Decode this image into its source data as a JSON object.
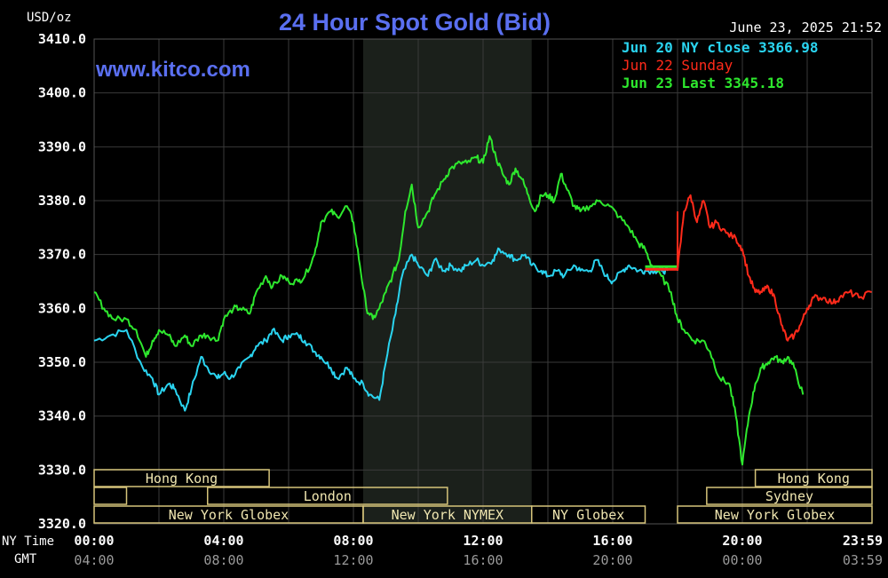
{
  "header": {
    "unit_label": "USD/oz",
    "title": "24 Hour Spot Gold (Bid)",
    "datetime": "June 23, 2025 21:52",
    "watermark": "www.kitco.com"
  },
  "colors": {
    "background": "#000000",
    "plot_background": "#000000",
    "grid": "#3a3a3a",
    "ny_session_shade": "#1b201b",
    "axis_text": "#ffffff",
    "axis_text_dim": "#9a9a9a",
    "title": "#5a6ff0",
    "jun20": "#2ad4f0",
    "jun22": "#ff2a1a",
    "jun23": "#2ee82e",
    "session_border": "#d6c47a",
    "session_text": "#f0e6b0"
  },
  "axis_labels": {
    "nytime": "NY Time",
    "gmt": "GMT"
  },
  "chart_data": {
    "type": "line",
    "ylim": [
      3320,
      3410
    ],
    "y_ticks": [
      "3410.0",
      "3400.0",
      "3390.0",
      "3380.0",
      "3370.0",
      "3360.0",
      "3350.0",
      "3340.0",
      "3330.0",
      "3320.0"
    ],
    "xlim": [
      0,
      24
    ],
    "x_ticks_ny": [
      "00:00",
      "04:00",
      "08:00",
      "12:00",
      "16:00",
      "20:00",
      "23:59"
    ],
    "x_ticks_gmt": [
      "04:00",
      "08:00",
      "12:00",
      "16:00",
      "20:00",
      "00:00",
      "03:59"
    ],
    "grid": true,
    "legend_position": "top-right",
    "legend": [
      {
        "label": "Jun 20 NY close 3366.98",
        "color": "#2ad4f0"
      },
      {
        "label": "Jun 22 Sunday",
        "color": "#ff2a1a"
      },
      {
        "label": "Jun 23 Last 3345.18",
        "color": "#2ee82e"
      }
    ],
    "shaded_region": [
      8.3,
      13.5
    ],
    "series": [
      {
        "name": "Jun 20",
        "color": "#2ad4f0",
        "x": [
          0,
          0.5,
          1.0,
          1.5,
          1.8,
          2.0,
          2.3,
          2.5,
          2.8,
          3.0,
          3.3,
          3.5,
          3.8,
          4.0,
          4.2,
          4.5,
          4.8,
          5.0,
          5.3,
          5.5,
          5.8,
          6.0,
          6.3,
          6.5,
          6.8,
          7.0,
          7.3,
          7.5,
          7.8,
          8.0,
          8.3,
          8.5,
          8.8,
          9.0,
          9.3,
          9.5,
          9.8,
          10.0,
          10.3,
          10.5,
          10.8,
          11.0,
          11.3,
          11.5,
          11.8,
          12.0,
          12.3,
          12.5,
          12.8,
          13.0,
          13.3,
          13.5,
          13.8,
          14.0,
          14.3,
          14.5,
          14.8,
          15.0,
          15.3,
          15.5,
          15.8,
          16.0,
          16.3,
          16.5,
          16.8,
          17.0,
          17.3,
          17.5,
          17.7
        ],
        "values": [
          3354,
          3355,
          3356,
          3349,
          3347,
          3344,
          3346,
          3345,
          3341,
          3345,
          3351,
          3349,
          3347,
          3348,
          3347,
          3349,
          3351,
          3353,
          3354,
          3356,
          3354,
          3355,
          3355,
          3354,
          3352,
          3351,
          3349,
          3347,
          3349,
          3347,
          3346,
          3344,
          3343,
          3350,
          3359,
          3366,
          3370,
          3368,
          3366,
          3369,
          3367,
          3368,
          3367,
          3368,
          3369,
          3368,
          3369,
          3371,
          3370,
          3369,
          3370,
          3368,
          3367,
          3366,
          3367,
          3366,
          3368,
          3367,
          3367,
          3369,
          3366,
          3365,
          3367,
          3368,
          3367,
          3367,
          3367,
          3367,
          3367
        ]
      },
      {
        "name": "Jun 23",
        "color": "#2ee82e",
        "x": [
          0,
          0.3,
          0.6,
          1.0,
          1.3,
          1.6,
          1.8,
          2.0,
          2.3,
          2.5,
          2.8,
          3.0,
          3.3,
          3.5,
          3.8,
          4.0,
          4.3,
          4.5,
          4.8,
          5.0,
          5.3,
          5.5,
          5.8,
          6.0,
          6.3,
          6.5,
          6.8,
          7.0,
          7.3,
          7.5,
          7.8,
          8.0,
          8.2,
          8.4,
          8.6,
          8.8,
          9.0,
          9.2,
          9.4,
          9.6,
          9.8,
          10.0,
          10.3,
          10.5,
          10.8,
          11.0,
          11.3,
          11.5,
          11.8,
          12.0,
          12.2,
          12.4,
          12.6,
          12.8,
          13.0,
          13.2,
          13.4,
          13.6,
          13.8,
          14.0,
          14.2,
          14.4,
          14.6,
          14.8,
          15.0,
          15.3,
          15.6,
          15.9,
          16.2,
          16.5,
          16.8,
          17.0,
          17.2,
          17.5,
          17.8,
          18.0,
          18.2,
          18.5,
          18.8,
          19.0,
          19.3,
          19.6,
          19.8,
          20.0,
          20.2,
          20.4,
          20.6,
          20.8,
          21.0,
          21.2,
          21.4,
          21.6,
          21.87
        ],
        "values": [
          3363,
          3360,
          3358,
          3358,
          3356,
          3351,
          3354,
          3356,
          3355,
          3353,
          3355,
          3353,
          3355,
          3355,
          3354,
          3358,
          3360,
          3360,
          3359,
          3363,
          3366,
          3364,
          3366,
          3365,
          3365,
          3366,
          3370,
          3376,
          3378,
          3377,
          3379,
          3376,
          3368,
          3360,
          3358,
          3360,
          3363,
          3366,
          3369,
          3378,
          3383,
          3375,
          3378,
          3381,
          3384,
          3386,
          3387,
          3387,
          3388,
          3387,
          3392,
          3388,
          3385,
          3383,
          3386,
          3384,
          3381,
          3378,
          3381,
          3381,
          3380,
          3385,
          3382,
          3379,
          3378,
          3379,
          3380,
          3379,
          3377,
          3375,
          3372,
          3371,
          3368,
          3366,
          3363,
          3358,
          3356,
          3354,
          3354,
          3352,
          3347,
          3346,
          3340,
          3331,
          3340,
          3346,
          3349,
          3350,
          3351,
          3350,
          3351,
          3349,
          3344
        ]
      },
      {
        "name": "Jun 22",
        "color": "#ff2a1a",
        "x": [
          18.0,
          18.2,
          18.4,
          18.6,
          18.8,
          19.0,
          19.2,
          19.5,
          19.8,
          20.0,
          20.2,
          20.4,
          20.6,
          20.8,
          21.0,
          21.2,
          21.4,
          21.6,
          21.8,
          22.0,
          22.2,
          22.5,
          22.8,
          23.0,
          23.3,
          23.6,
          23.99
        ],
        "values": [
          3367,
          3378,
          3381,
          3376,
          3380,
          3375,
          3376,
          3374,
          3373,
          3371,
          3366,
          3363,
          3363,
          3364,
          3362,
          3357,
          3354,
          3355,
          3357,
          3360,
          3362,
          3362,
          3361,
          3362,
          3363,
          3362,
          3363
        ]
      }
    ],
    "flat_segment": {
      "from": 17.0,
      "to": 18.0,
      "values_label": ""
    },
    "session_rows": [
      [
        {
          "label": "Hong Kong",
          "from": 0.0,
          "to": 5.4
        },
        {
          "label": "Hong Kong",
          "from": 20.4,
          "to": 24.0
        }
      ],
      [
        {
          "label": "",
          "from": 0.0,
          "to": 1.0
        },
        {
          "label": "London",
          "from": 3.5,
          "to": 10.9
        },
        {
          "label": "Sydney",
          "from": 18.9,
          "to": 24.0
        }
      ],
      [
        {
          "label": "New York Globex",
          "from": 0.0,
          "to": 8.3
        },
        {
          "label": "New York NYMEX",
          "from": 8.3,
          "to": 13.5
        },
        {
          "label": "NY Globex",
          "from": 13.5,
          "to": 17.0
        },
        {
          "label": "New York Globex",
          "from": 18.0,
          "to": 24.0
        }
      ]
    ]
  }
}
